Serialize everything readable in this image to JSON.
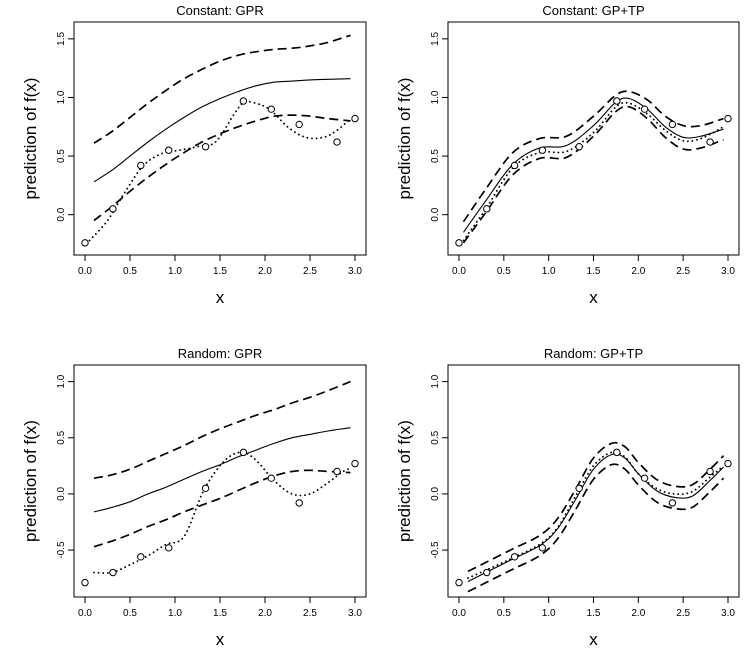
{
  "chart_data": [
    {
      "type": "line",
      "title": "Constant: GPR",
      "xlabel": "x",
      "ylabel": "prediction of f(x)",
      "xlim": [
        0,
        3
      ],
      "ylim": [
        -0.25,
        1.55
      ],
      "xticks": [
        "0.0",
        "0.5",
        "1.0",
        "1.5",
        "2.0",
        "2.5",
        "3.0"
      ],
      "yticks": [
        "0.0",
        "0.5",
        "1.0",
        "1.5"
      ],
      "points": {
        "x": [
          0.0,
          0.31,
          0.62,
          0.93,
          1.34,
          1.76,
          2.07,
          2.38,
          2.8,
          3.0
        ],
        "y": [
          -0.24,
          0.05,
          0.42,
          0.55,
          0.58,
          0.97,
          0.9,
          0.77,
          0.62,
          0.82
        ]
      },
      "series": [
        {
          "name": "truth",
          "style": "dotted",
          "x": [
            0.05,
            0.25,
            0.45,
            0.65,
            0.85,
            1.05,
            1.25,
            1.45,
            1.65,
            1.75,
            1.85,
            2.05,
            2.25,
            2.45,
            2.65,
            2.8,
            2.95
          ],
          "y": [
            -0.22,
            -0.05,
            0.2,
            0.42,
            0.52,
            0.55,
            0.58,
            0.62,
            0.85,
            0.95,
            0.96,
            0.9,
            0.75,
            0.66,
            0.66,
            0.72,
            0.82
          ]
        },
        {
          "name": "mean",
          "style": "solid",
          "x": [
            0.1,
            0.3,
            0.5,
            0.7,
            0.9,
            1.1,
            1.3,
            1.5,
            1.7,
            1.9,
            2.1,
            2.3,
            2.5,
            2.7,
            2.95
          ],
          "y": [
            0.28,
            0.38,
            0.5,
            0.62,
            0.73,
            0.83,
            0.92,
            0.99,
            1.05,
            1.1,
            1.13,
            1.14,
            1.15,
            1.155,
            1.16
          ]
        },
        {
          "name": "upper",
          "style": "dashed",
          "x": [
            0.1,
            0.3,
            0.5,
            0.7,
            0.9,
            1.1,
            1.3,
            1.5,
            1.7,
            1.9,
            2.1,
            2.3,
            2.5,
            2.7,
            2.95
          ],
          "y": [
            0.61,
            0.71,
            0.83,
            0.95,
            1.06,
            1.16,
            1.24,
            1.31,
            1.36,
            1.39,
            1.41,
            1.42,
            1.44,
            1.47,
            1.53
          ]
        },
        {
          "name": "lower",
          "style": "dashed",
          "x": [
            0.1,
            0.3,
            0.5,
            0.7,
            0.9,
            1.1,
            1.3,
            1.5,
            1.7,
            1.9,
            2.1,
            2.3,
            2.5,
            2.7,
            2.95
          ],
          "y": [
            -0.05,
            0.07,
            0.2,
            0.32,
            0.43,
            0.53,
            0.62,
            0.69,
            0.75,
            0.8,
            0.84,
            0.85,
            0.84,
            0.82,
            0.8
          ]
        }
      ]
    },
    {
      "type": "line",
      "title": "Constant: GP+TP",
      "xlabel": "x",
      "ylabel": "prediction of f(x)",
      "xlim": [
        0,
        3
      ],
      "ylim": [
        -0.25,
        1.55
      ],
      "xticks": [
        "0.0",
        "0.5",
        "1.0",
        "1.5",
        "2.0",
        "2.5",
        "3.0"
      ],
      "yticks": [
        "0.0",
        "0.5",
        "1.0",
        "1.5"
      ],
      "points": {
        "x": [
          0.0,
          0.31,
          0.62,
          0.93,
          1.34,
          1.76,
          2.07,
          2.38,
          2.8,
          3.0
        ],
        "y": [
          -0.24,
          0.05,
          0.42,
          0.55,
          0.58,
          0.97,
          0.9,
          0.77,
          0.62,
          0.82
        ]
      },
      "series": [
        {
          "name": "truth",
          "style": "dotted",
          "x": [
            0.05,
            0.3,
            0.6,
            0.9,
            1.2,
            1.5,
            1.75,
            1.9,
            2.1,
            2.3,
            2.5,
            2.7,
            2.95
          ],
          "y": [
            -0.22,
            0.05,
            0.4,
            0.53,
            0.54,
            0.7,
            0.92,
            0.95,
            0.86,
            0.72,
            0.63,
            0.65,
            0.75
          ]
        },
        {
          "name": "mean",
          "style": "solid",
          "x": [
            0.05,
            0.3,
            0.6,
            0.9,
            1.2,
            1.5,
            1.75,
            1.9,
            2.1,
            2.3,
            2.5,
            2.7,
            2.95
          ],
          "y": [
            -0.15,
            0.12,
            0.43,
            0.57,
            0.59,
            0.76,
            0.96,
            0.99,
            0.9,
            0.75,
            0.66,
            0.67,
            0.73
          ]
        },
        {
          "name": "upper",
          "style": "dashed",
          "x": [
            0.05,
            0.3,
            0.6,
            0.9,
            1.2,
            1.5,
            1.75,
            1.9,
            2.1,
            2.3,
            2.5,
            2.7,
            2.95
          ],
          "y": [
            -0.06,
            0.22,
            0.53,
            0.65,
            0.67,
            0.84,
            1.02,
            1.05,
            0.98,
            0.84,
            0.76,
            0.76,
            0.82
          ]
        },
        {
          "name": "lower",
          "style": "dashed",
          "x": [
            0.05,
            0.3,
            0.6,
            0.9,
            1.2,
            1.5,
            1.75,
            1.9,
            2.1,
            2.3,
            2.5,
            2.7,
            2.95
          ],
          "y": [
            -0.24,
            0.02,
            0.34,
            0.48,
            0.49,
            0.67,
            0.88,
            0.92,
            0.82,
            0.66,
            0.56,
            0.57,
            0.64
          ]
        }
      ]
    },
    {
      "type": "line",
      "title": "Random: GPR",
      "xlabel": "x",
      "ylabel": "prediction of f(x)",
      "xlim": [
        0,
        3
      ],
      "ylim": [
        -0.82,
        1.05
      ],
      "xticks": [
        "0.0",
        "0.5",
        "1.0",
        "1.5",
        "2.0",
        "2.5",
        "3.0"
      ],
      "yticks": [
        "-0.5",
        "0.0",
        "0.5",
        "1.0"
      ],
      "points": {
        "x": [
          0.0,
          0.31,
          0.62,
          0.93,
          1.34,
          1.76,
          2.07,
          2.38,
          2.8,
          3.0
        ],
        "y": [
          -0.79,
          -0.7,
          -0.56,
          -0.48,
          0.05,
          0.37,
          0.14,
          -0.08,
          0.2,
          0.27
        ]
      },
      "series": [
        {
          "name": "truth",
          "style": "dotted",
          "x": [
            0.1,
            0.3,
            0.5,
            0.7,
            0.9,
            1.1,
            1.3,
            1.45,
            1.6,
            1.75,
            1.9,
            2.1,
            2.3,
            2.5,
            2.7,
            2.85,
            2.95
          ],
          "y": [
            -0.7,
            -0.7,
            -0.63,
            -0.55,
            -0.45,
            -0.38,
            0.0,
            0.2,
            0.33,
            0.37,
            0.3,
            0.12,
            0.0,
            0.0,
            0.1,
            0.19,
            0.23
          ]
        },
        {
          "name": "mean",
          "style": "solid",
          "x": [
            0.1,
            0.3,
            0.5,
            0.7,
            0.9,
            1.1,
            1.3,
            1.5,
            1.7,
            1.9,
            2.1,
            2.3,
            2.5,
            2.7,
            2.95
          ],
          "y": [
            -0.16,
            -0.12,
            -0.07,
            0.0,
            0.06,
            0.13,
            0.2,
            0.26,
            0.33,
            0.39,
            0.45,
            0.5,
            0.53,
            0.56,
            0.59
          ]
        },
        {
          "name": "upper",
          "style": "dashed",
          "x": [
            0.1,
            0.3,
            0.5,
            0.7,
            0.9,
            1.1,
            1.3,
            1.5,
            1.7,
            1.9,
            2.1,
            2.3,
            2.5,
            2.7,
            2.95
          ],
          "y": [
            0.14,
            0.17,
            0.22,
            0.29,
            0.36,
            0.43,
            0.51,
            0.58,
            0.64,
            0.7,
            0.75,
            0.81,
            0.86,
            0.92,
            1.0
          ]
        },
        {
          "name": "lower",
          "style": "dashed",
          "x": [
            0.1,
            0.3,
            0.5,
            0.7,
            0.9,
            1.1,
            1.3,
            1.5,
            1.7,
            1.9,
            2.1,
            2.3,
            2.5,
            2.7,
            2.95
          ],
          "y": [
            -0.47,
            -0.42,
            -0.36,
            -0.29,
            -0.23,
            -0.16,
            -0.1,
            -0.04,
            0.03,
            0.1,
            0.16,
            0.2,
            0.21,
            0.2,
            0.19
          ]
        }
      ]
    },
    {
      "type": "line",
      "title": "Random: GP+TP",
      "xlabel": "x",
      "ylabel": "prediction of f(x)",
      "xlim": [
        0,
        3
      ],
      "ylim": [
        -0.82,
        1.05
      ],
      "xticks": [
        "0.0",
        "0.5",
        "1.0",
        "1.5",
        "2.0",
        "2.5",
        "3.0"
      ],
      "yticks": [
        "-0.5",
        "0.0",
        "0.5",
        "1.0"
      ],
      "points": {
        "x": [
          0.0,
          0.31,
          0.62,
          0.93,
          1.34,
          1.76,
          2.07,
          2.38,
          2.8,
          3.0
        ],
        "y": [
          -0.79,
          -0.7,
          -0.56,
          -0.48,
          0.05,
          0.37,
          0.14,
          -0.08,
          0.2,
          0.27
        ]
      },
      "series": [
        {
          "name": "truth",
          "style": "dotted",
          "x": [
            0.1,
            0.3,
            0.6,
            0.9,
            1.1,
            1.3,
            1.5,
            1.7,
            1.85,
            2.0,
            2.2,
            2.4,
            2.6,
            2.8,
            2.95
          ],
          "y": [
            -0.75,
            -0.68,
            -0.57,
            -0.45,
            -0.3,
            -0.02,
            0.25,
            0.37,
            0.33,
            0.18,
            0.05,
            0.0,
            0.02,
            0.15,
            0.25
          ]
        },
        {
          "name": "mean",
          "style": "solid",
          "x": [
            0.1,
            0.3,
            0.6,
            0.9,
            1.1,
            1.3,
            1.5,
            1.7,
            1.85,
            2.0,
            2.2,
            2.4,
            2.6,
            2.8,
            2.95
          ],
          "y": [
            -0.78,
            -0.7,
            -0.58,
            -0.46,
            -0.31,
            -0.05,
            0.22,
            0.35,
            0.32,
            0.18,
            0.03,
            -0.03,
            -0.02,
            0.12,
            0.24
          ]
        },
        {
          "name": "upper",
          "style": "dashed",
          "x": [
            0.1,
            0.3,
            0.6,
            0.9,
            1.1,
            1.3,
            1.5,
            1.7,
            1.85,
            2.0,
            2.2,
            2.4,
            2.6,
            2.8,
            2.95
          ],
          "y": [
            -0.69,
            -0.61,
            -0.49,
            -0.37,
            -0.22,
            0.04,
            0.32,
            0.45,
            0.42,
            0.28,
            0.13,
            0.07,
            0.08,
            0.22,
            0.34
          ]
        },
        {
          "name": "lower",
          "style": "dashed",
          "x": [
            0.1,
            0.3,
            0.6,
            0.9,
            1.1,
            1.3,
            1.5,
            1.7,
            1.85,
            2.0,
            2.2,
            2.4,
            2.6,
            2.8,
            2.95
          ],
          "y": [
            -0.87,
            -0.79,
            -0.67,
            -0.55,
            -0.4,
            -0.14,
            0.13,
            0.26,
            0.22,
            0.08,
            -0.07,
            -0.13,
            -0.12,
            0.02,
            0.14
          ]
        }
      ]
    }
  ]
}
